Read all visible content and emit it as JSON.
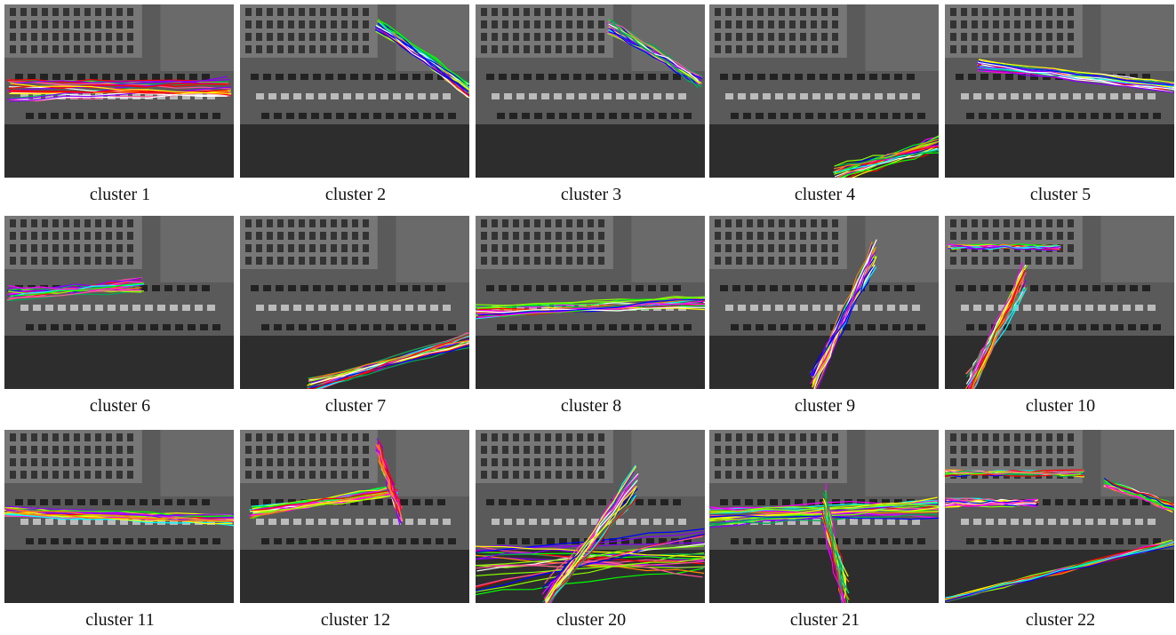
{
  "panels": [
    {
      "caption": "cluster 1"
    },
    {
      "caption": "cluster 2"
    },
    {
      "caption": "cluster 3"
    },
    {
      "caption": "cluster 4"
    },
    {
      "caption": "cluster 5"
    },
    {
      "caption": "cluster 6"
    },
    {
      "caption": "cluster 7"
    },
    {
      "caption": "cluster 8"
    },
    {
      "caption": "cluster 9"
    },
    {
      "caption": "cluster 10"
    },
    {
      "caption": "cluster 11"
    },
    {
      "caption": "cluster 12"
    },
    {
      "caption": "cluster 20"
    },
    {
      "caption": "cluster 21"
    },
    {
      "caption": "cluster 22"
    }
  ]
}
